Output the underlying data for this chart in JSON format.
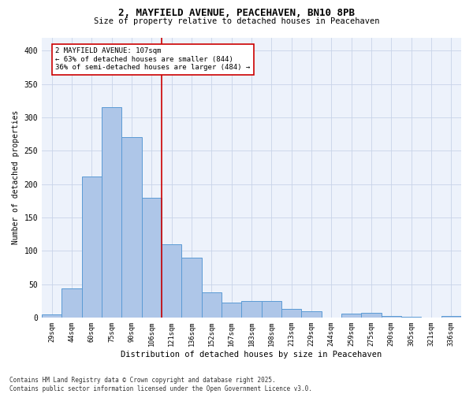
{
  "title_line1": "2, MAYFIELD AVENUE, PEACEHAVEN, BN10 8PB",
  "title_line2": "Size of property relative to detached houses in Peacehaven",
  "xlabel": "Distribution of detached houses by size in Peacehaven",
  "ylabel": "Number of detached properties",
  "property_label": "2 MAYFIELD AVENUE: 107sqm",
  "annotation_line2": "← 63% of detached houses are smaller (844)",
  "annotation_line3": "36% of semi-detached houses are larger (484) →",
  "bar_labels": [
    "29sqm",
    "44sqm",
    "60sqm",
    "75sqm",
    "90sqm",
    "106sqm",
    "121sqm",
    "136sqm",
    "152sqm",
    "167sqm",
    "183sqm",
    "198sqm",
    "213sqm",
    "229sqm",
    "244sqm",
    "259sqm",
    "275sqm",
    "290sqm",
    "305sqm",
    "321sqm",
    "336sqm"
  ],
  "bar_values": [
    5,
    44,
    212,
    315,
    270,
    180,
    110,
    90,
    38,
    22,
    25,
    25,
    13,
    10,
    0,
    6,
    7,
    2,
    1,
    0,
    3
  ],
  "bar_color": "#aec6e8",
  "bar_edge_color": "#5b9bd5",
  "vline_color": "#cc0000",
  "vline_bin": 5,
  "grid_color": "#c8d4e8",
  "ylim": [
    0,
    420
  ],
  "yticks": [
    0,
    50,
    100,
    150,
    200,
    250,
    300,
    350,
    400
  ],
  "footnote_line1": "Contains HM Land Registry data © Crown copyright and database right 2025.",
  "footnote_line2": "Contains public sector information licensed under the Open Government Licence v3.0.",
  "bg_color": "#edf2fb",
  "fig_bg_color": "#ffffff"
}
